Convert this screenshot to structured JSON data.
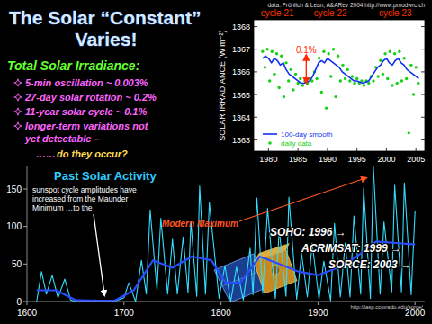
{
  "title": {
    "line1": "The Solar “Constant”",
    "line2": "Varies!"
  },
  "summary": {
    "heading": "Total Solar Irradiance:",
    "items": [
      [
        "5-min oscillation ~ 0.003%"
      ],
      [
        "27-day solar rotation ~ 0.2%"
      ],
      [
        "11-year solar cycle ~ 0.1%"
      ],
      [
        "longer-term variations not",
        "yet detectable –"
      ]
    ],
    "dots": "……",
    "question": "do they occur?"
  },
  "chart_data": [
    {
      "type": "line",
      "source": "data: Fröhlich & Lean, A&ARev 2004  http://www.pmodwrc.ch",
      "y_label": "SOLAR IRRADIANCE (W m⁻²)",
      "cycle_labels": [
        "cycle 21",
        "cycle 22",
        "cycle 23"
      ],
      "annotation": "0.1%",
      "xlim": [
        1977.5,
        2006.5
      ],
      "xticks": [
        1980,
        1985,
        1990,
        1995,
        2000,
        2005
      ],
      "ylim": [
        1362.5,
        1368.3
      ],
      "yticks": [
        1363,
        1364,
        1365,
        1366,
        1367,
        1368
      ],
      "grid": false,
      "legend": "lower left",
      "series": [
        {
          "name": "100-day smooth",
          "type": "line",
          "line_style": "solid",
          "color": "#1030ee",
          "x": [
            1979,
            1979.5,
            1980,
            1980.5,
            1981,
            1981.5,
            1982,
            1982.5,
            1983,
            1983.5,
            1984,
            1984.5,
            1985,
            1985.5,
            1986,
            1986.5,
            1987,
            1987.5,
            1988,
            1988.5,
            1989,
            1989.5,
            1990,
            1990.5,
            1991,
            1991.5,
            1992,
            1992.5,
            1993,
            1993.5,
            1994,
            1994.5,
            1995,
            1995.5,
            1996,
            1996.5,
            1997,
            1997.5,
            1998,
            1998.5,
            1999,
            1999.5,
            2000,
            2000.5,
            2001,
            2001.5,
            2002,
            2002.5,
            2003,
            2003.5,
            2004,
            2004.5,
            2005,
            2005.5
          ],
          "values": [
            1366.6,
            1366.7,
            1366.6,
            1366.4,
            1366.6,
            1366.5,
            1366.3,
            1366.4,
            1366.1,
            1365.9,
            1365.8,
            1365.7,
            1365.6,
            1365.5,
            1365.5,
            1365.55,
            1365.6,
            1365.8,
            1366.1,
            1366.4,
            1366.5,
            1366.4,
            1366.6,
            1366.5,
            1366.4,
            1366.3,
            1366.2,
            1366.0,
            1365.9,
            1365.8,
            1365.7,
            1365.6,
            1365.6,
            1365.55,
            1365.5,
            1365.55,
            1365.6,
            1365.8,
            1366.0,
            1366.2,
            1366.3,
            1366.5,
            1366.6,
            1366.4,
            1366.3,
            1366.5,
            1366.6,
            1366.4,
            1366.3,
            1366.1,
            1366.0,
            1365.9,
            1365.8,
            1365.7
          ]
        },
        {
          "name": "daily data",
          "type": "scatter",
          "marker": "dot",
          "color": "#16d016",
          "x": [
            1979.0,
            1979.4,
            1979.8,
            1980.2,
            1980.6,
            1981.0,
            1981.4,
            1981.8,
            1982.2,
            1982.6,
            1983.0,
            1983.4,
            1983.8,
            1984.2,
            1984.6,
            1985.0,
            1985.4,
            1985.8,
            1986.2,
            1986.6,
            1987.0,
            1987.4,
            1987.8,
            1988.2,
            1988.6,
            1989.0,
            1989.4,
            1989.8,
            1990.2,
            1990.6,
            1991.0,
            1991.4,
            1991.8,
            1992.2,
            1992.6,
            1993.0,
            1993.4,
            1993.8,
            1994.2,
            1994.6,
            1995.0,
            1995.4,
            1995.8,
            1996.2,
            1996.6,
            1997.0,
            1997.4,
            1997.8,
            1998.2,
            1998.6,
            1999.0,
            1999.4,
            1999.8,
            2000.2,
            2000.6,
            2001.0,
            2001.4,
            2001.8,
            2002.2,
            2002.6,
            2003.0,
            2003.4,
            2003.8,
            2004.2,
            2004.6,
            2005.0,
            2005.4
          ],
          "values": [
            1366.9,
            1366.2,
            1367.0,
            1365.6,
            1366.9,
            1365.9,
            1366.8,
            1365.3,
            1366.7,
            1364.9,
            1366.4,
            1365.6,
            1366.1,
            1365.2,
            1365.9,
            1365.5,
            1365.7,
            1365.4,
            1365.6,
            1365.5,
            1365.7,
            1365.6,
            1366.0,
            1365.7,
            1366.6,
            1365.1,
            1366.9,
            1364.4,
            1366.8,
            1365.8,
            1367.0,
            1364.9,
            1366.7,
            1365.6,
            1366.3,
            1365.7,
            1366.1,
            1365.6,
            1365.8,
            1365.5,
            1365.7,
            1365.5,
            1365.6,
            1365.4,
            1365.6,
            1365.5,
            1365.8,
            1365.6,
            1366.2,
            1365.8,
            1366.5,
            1365.9,
            1366.8,
            1365.7,
            1366.9,
            1365.4,
            1366.8,
            1365.5,
            1366.9,
            1365.6,
            1366.6,
            1365.7,
            1363.3,
            1366.3,
            1365.0,
            1366.2,
            1365.5
          ]
        }
      ]
    },
    {
      "type": "line",
      "title": "Past Solar Activity",
      "note_lines": [
        "sunspot cycle amplitudes have",
        "increased from the Maunder",
        "Minimum …to the"
      ],
      "annotation": "Modern Maximum",
      "xlim": [
        1600,
        2010
      ],
      "xticks": [
        1600,
        1700,
        1800,
        1900,
        2000
      ],
      "ylim": [
        0,
        180
      ],
      "yticks": [
        0,
        50,
        100,
        150
      ],
      "grid": false,
      "series": [
        {
          "type": "line",
          "line_style": "solid",
          "color": "#33ddff",
          "x": [
            1610,
            1615,
            1620,
            1626,
            1632,
            1639,
            1645,
            1650,
            1660,
            1670,
            1680,
            1690,
            1700,
            1705,
            1712,
            1718,
            1723,
            1727,
            1734,
            1738,
            1745,
            1750,
            1755,
            1761,
            1766,
            1769,
            1775,
            1778,
            1784,
            1788,
            1798,
            1804,
            1810,
            1816,
            1823,
            1830,
            1833,
            1837,
            1843,
            1848,
            1856,
            1860,
            1867,
            1870,
            1878,
            1883,
            1889,
            1894,
            1901,
            1906,
            1913,
            1917,
            1923,
            1928,
            1933,
            1937,
            1944,
            1947,
            1954,
            1957,
            1964,
            1968,
            1976,
            1979,
            1986,
            1989,
            1996,
            2000
          ],
          "values": [
            0,
            40,
            10,
            35,
            5,
            30,
            2,
            0,
            0,
            2,
            0,
            0,
            5,
            25,
            0,
            55,
            10,
            122,
            15,
            111,
            10,
            83,
            10,
            86,
            12,
            106,
            7,
            154,
            10,
            132,
            4,
            48,
            0,
            46,
            2,
            71,
            9,
            138,
            11,
            124,
            4,
            96,
            7,
            139,
            3,
            64,
            6,
            78,
            3,
            54,
            1,
            104,
            6,
            78,
            6,
            114,
            10,
            151,
            4,
            180,
            10,
            106,
            13,
            155,
            13,
            158,
            9,
            120
          ]
        },
        {
          "type": "line",
          "line_style": "solid",
          "color": "#2a4dff",
          "x": [
            1610,
            1630,
            1650,
            1670,
            1690,
            1710,
            1730,
            1750,
            1770,
            1790,
            1805,
            1820,
            1840,
            1860,
            1880,
            1900,
            1920,
            1940,
            1960,
            1980,
            2000
          ],
          "values": [
            15,
            15,
            2,
            1,
            1,
            15,
            55,
            45,
            60,
            55,
            25,
            25,
            60,
            50,
            40,
            35,
            45,
            60,
            80,
            78,
            76
          ]
        }
      ]
    }
  ],
  "missions": [
    "SOHO: 1996 →",
    "ACRIMSAT: 1999 →",
    "SORCE: 2003 →"
  ],
  "credit": "http://lasp.colorado.edu/sorce/"
}
